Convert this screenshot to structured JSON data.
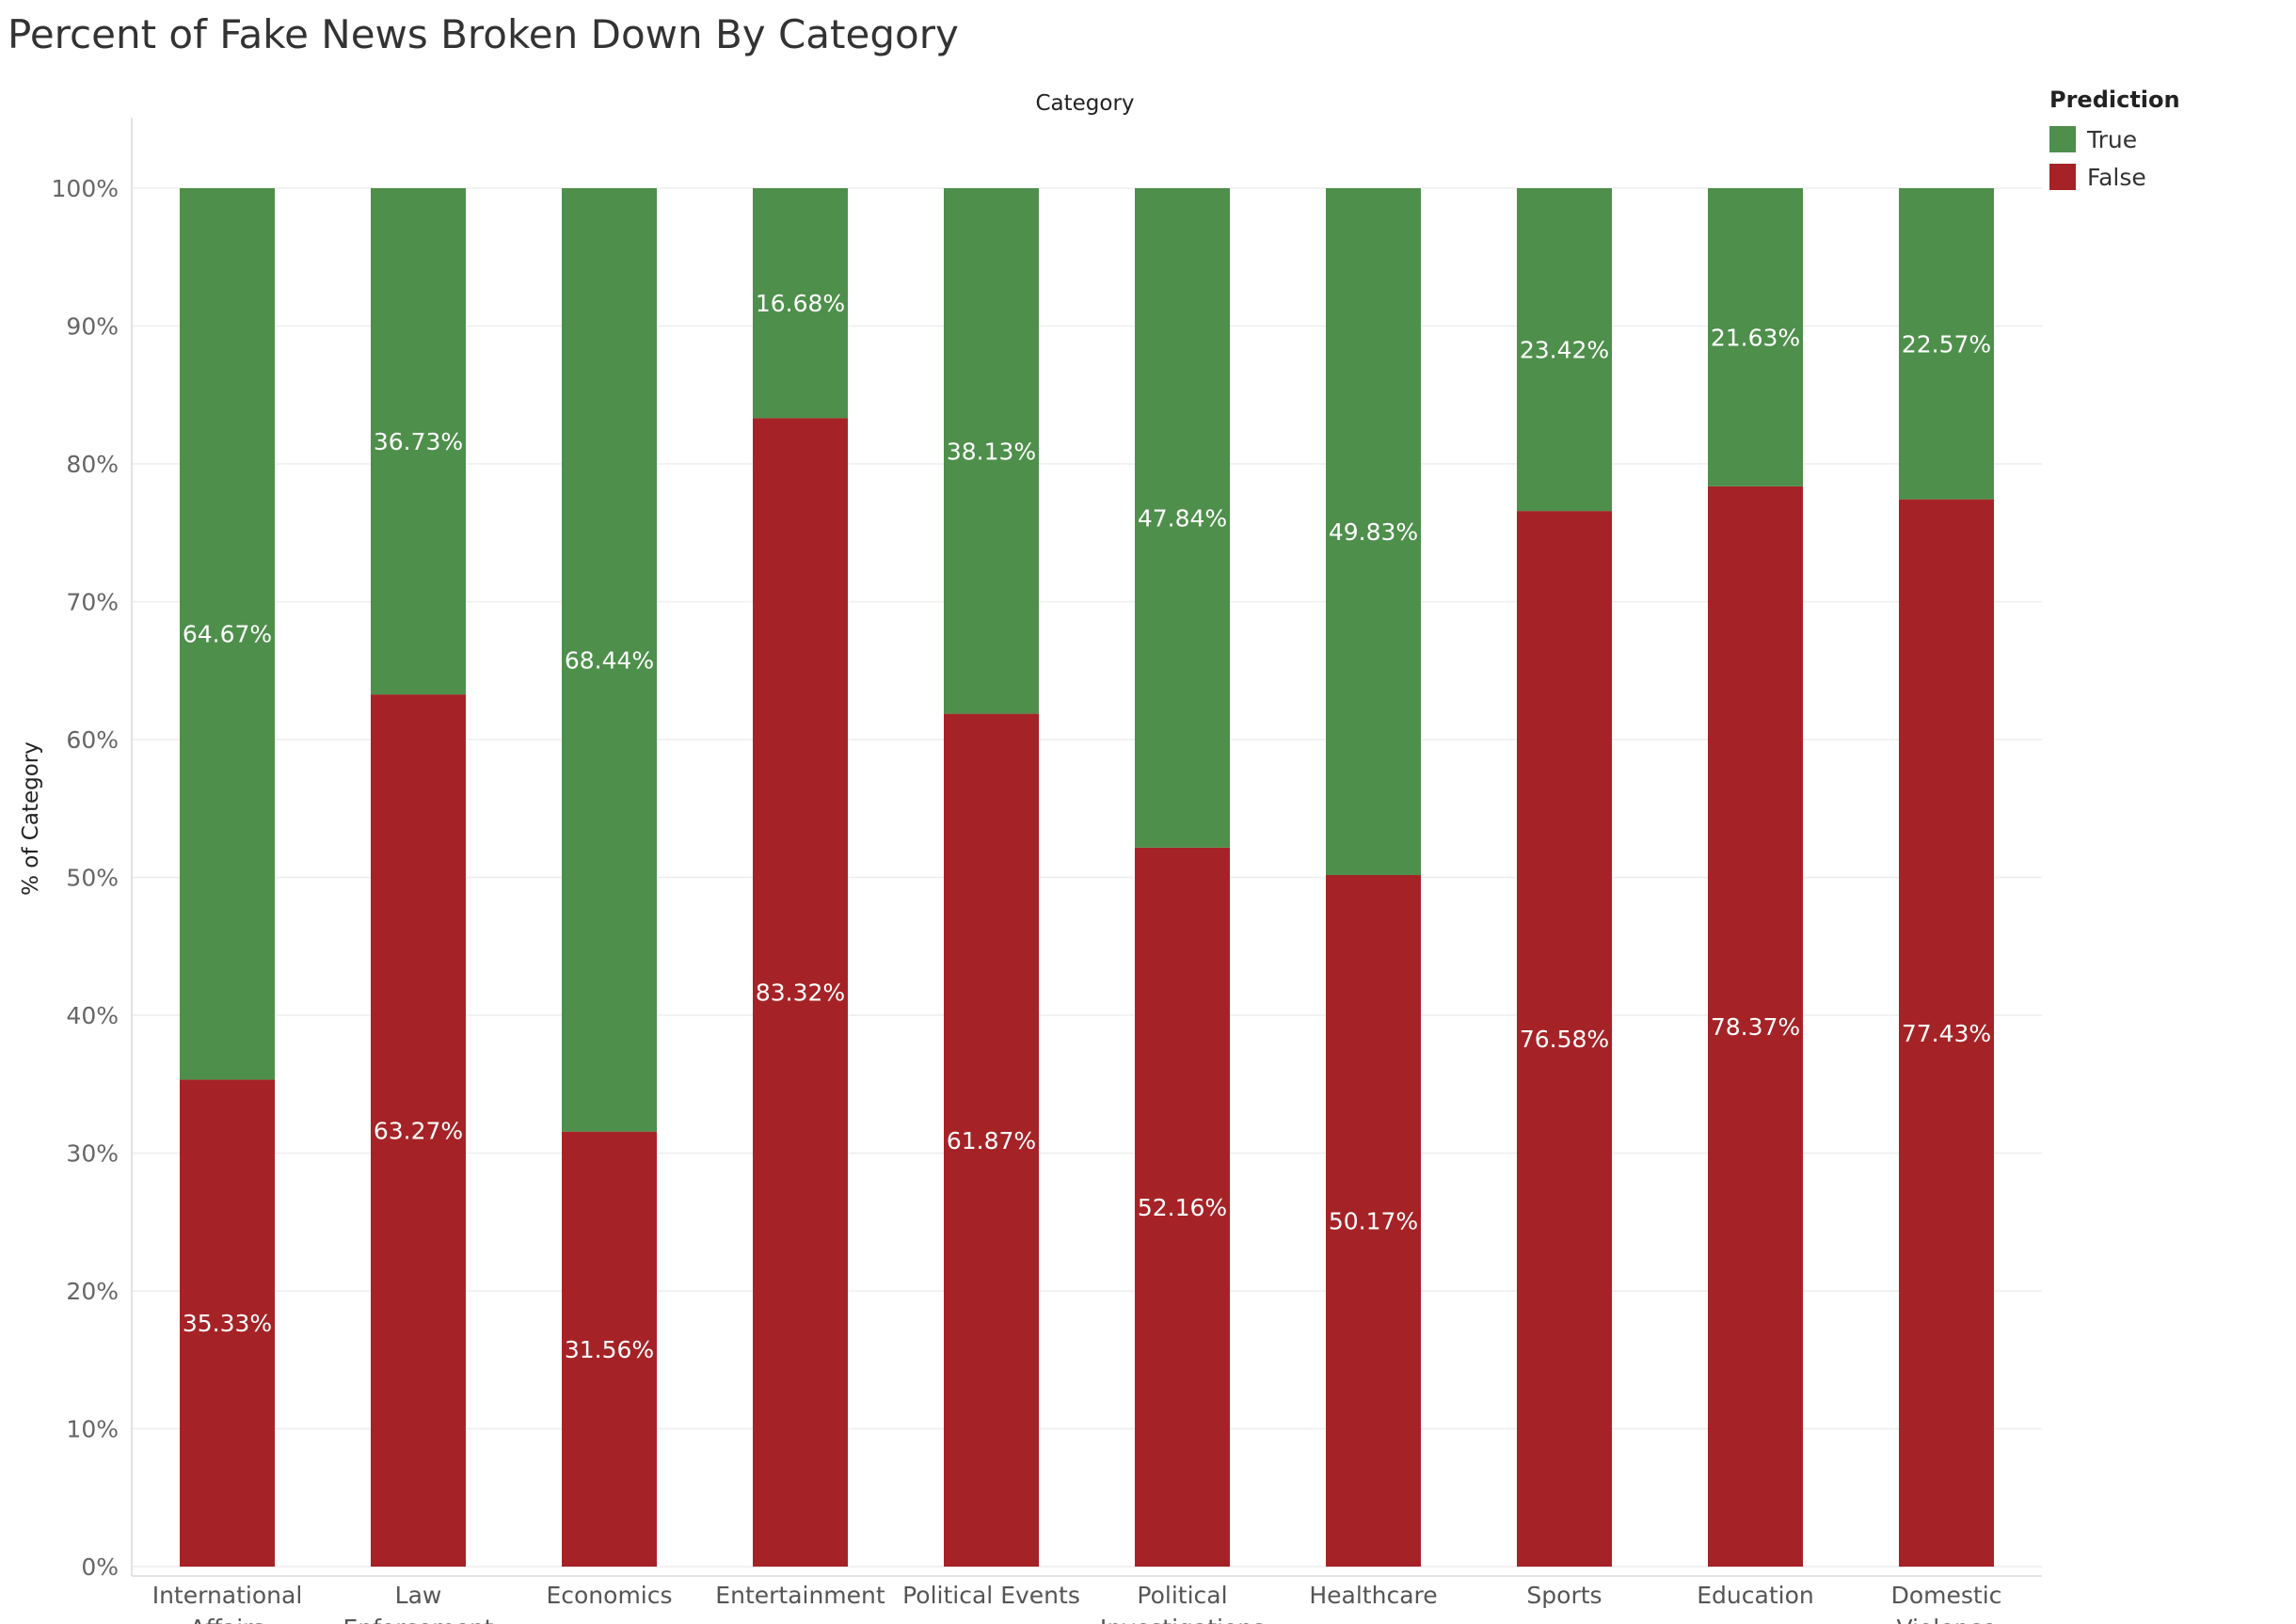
{
  "title": "Percent of Fake News Broken Down By Category",
  "colors": {
    "True": "#4e8f4b",
    "False": "#a52326",
    "grid": "#eeeeee",
    "axis": "#d9d9d9"
  },
  "legend": {
    "title": "Prediction",
    "items": [
      {
        "label": "True",
        "color": "#4e8f4b"
      },
      {
        "label": "False",
        "color": "#a52326"
      }
    ]
  },
  "chart_data": {
    "type": "bar",
    "stacked": true,
    "title": "Percent of Fake News Broken Down By Category",
    "column_header": "Category",
    "ylabel": "% of Category",
    "ylim": [
      0,
      100
    ],
    "yticks": [
      "0%",
      "10%",
      "20%",
      "30%",
      "40%",
      "50%",
      "60%",
      "70%",
      "80%",
      "90%",
      "100%"
    ],
    "yticks_values": [
      0,
      10,
      20,
      30,
      40,
      50,
      60,
      70,
      80,
      90,
      100
    ],
    "grid": true,
    "legend_position": "top-right",
    "categories": [
      [
        "International",
        "Affairs"
      ],
      [
        "Law",
        "Enforcement"
      ],
      [
        "Economics"
      ],
      [
        "Entertainment"
      ],
      [
        "Political Events"
      ],
      [
        "Political",
        "Investigations"
      ],
      [
        "Healthcare"
      ],
      [
        "Sports"
      ],
      [
        "Education"
      ],
      [
        "Domestic",
        "Violence"
      ]
    ],
    "series": [
      {
        "name": "False",
        "values": [
          35.33,
          63.27,
          31.56,
          83.32,
          61.87,
          52.16,
          50.17,
          76.58,
          78.37,
          77.43
        ],
        "labels": [
          "35.33%",
          "63.27%",
          "31.56%",
          "83.32%",
          "61.87%",
          "52.16%",
          "50.17%",
          "76.58%",
          "78.37%",
          "77.43%"
        ]
      },
      {
        "name": "True",
        "values": [
          64.67,
          36.73,
          68.44,
          16.68,
          38.13,
          47.84,
          49.83,
          23.42,
          21.63,
          22.57
        ],
        "labels": [
          "64.67%",
          "36.73%",
          "68.44%",
          "16.68%",
          "38.13%",
          "47.84%",
          "49.83%",
          "23.42%",
          "21.63%",
          "22.57%"
        ]
      }
    ]
  }
}
